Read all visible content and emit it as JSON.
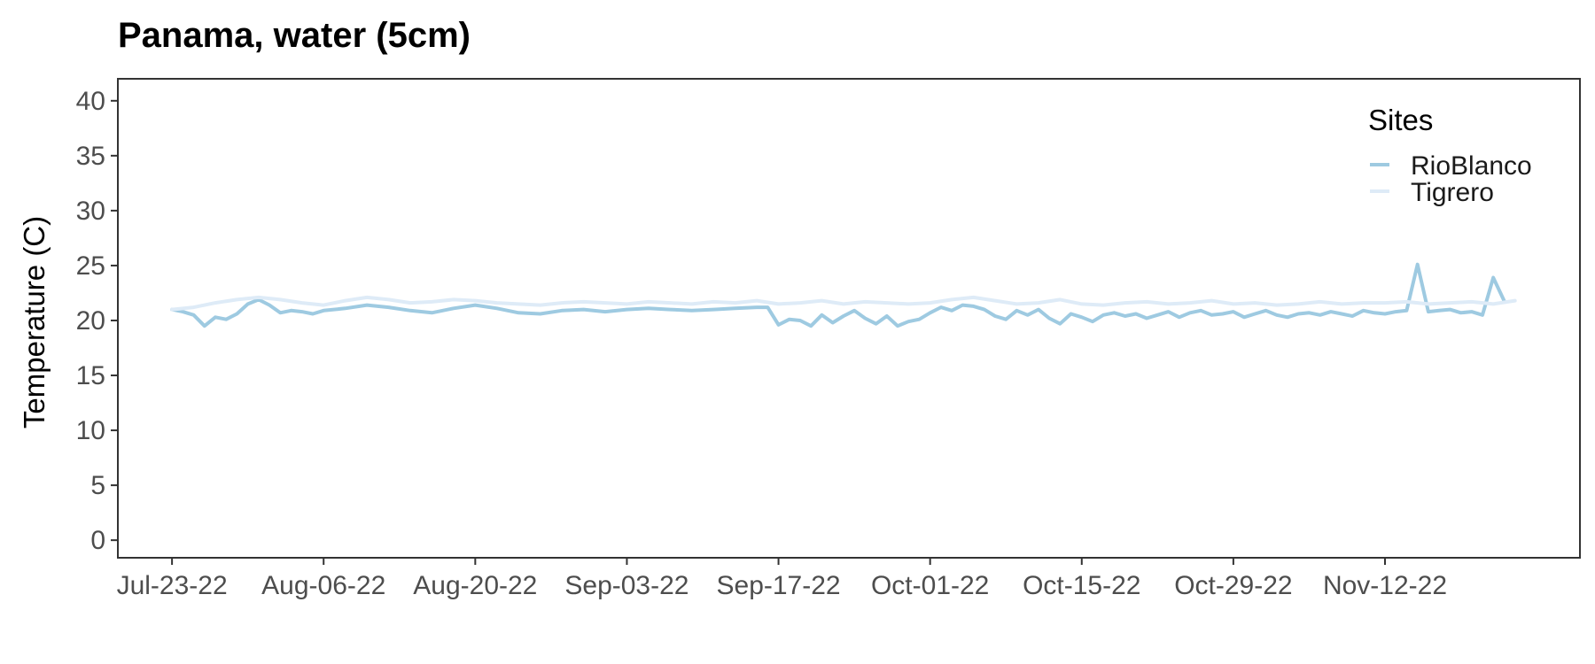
{
  "chart_data": {
    "type": "line",
    "title": "Panama, water (5cm)",
    "xlabel": "",
    "ylabel": "Temperature (C)",
    "ylim": [
      -1.6,
      42
    ],
    "y_ticks": [
      0,
      5,
      10,
      15,
      20,
      25,
      30,
      35,
      40
    ],
    "x_axis": {
      "type": "date",
      "min": "2022-07-18",
      "max": "2022-11-30",
      "tick_dates": [
        "2022-07-23",
        "2022-08-06",
        "2022-08-20",
        "2022-09-03",
        "2022-09-17",
        "2022-10-01",
        "2022-10-15",
        "2022-10-29",
        "2022-11-12"
      ],
      "tick_labels": [
        "Jul-23-22",
        "Aug-06-22",
        "Aug-20-22",
        "Sep-03-22",
        "Sep-17-22",
        "Oct-01-22",
        "Oct-15-22",
        "Oct-29-22",
        "Nov-12-22"
      ]
    },
    "grid": false,
    "legend": {
      "title": "Sites",
      "position": "top-right",
      "entries": [
        {
          "name": "RioBlanco",
          "color": "#9ecae1"
        },
        {
          "name": "Tigrero",
          "color": "#deebf7"
        }
      ]
    },
    "series": [
      {
        "name": "RioBlanco",
        "color": "#9ecae1",
        "x": [
          "2022-07-23",
          "2022-07-24",
          "2022-07-25",
          "2022-07-26",
          "2022-07-27",
          "2022-07-28",
          "2022-07-29",
          "2022-07-30",
          "2022-07-31",
          "2022-08-01",
          "2022-08-02",
          "2022-08-03",
          "2022-08-04",
          "2022-08-05",
          "2022-08-06",
          "2022-08-08",
          "2022-08-10",
          "2022-08-12",
          "2022-08-14",
          "2022-08-16",
          "2022-08-18",
          "2022-08-20",
          "2022-08-22",
          "2022-08-24",
          "2022-08-26",
          "2022-08-28",
          "2022-08-30",
          "2022-09-01",
          "2022-09-03",
          "2022-09-05",
          "2022-09-07",
          "2022-09-09",
          "2022-09-11",
          "2022-09-13",
          "2022-09-15",
          "2022-09-16",
          "2022-09-17",
          "2022-09-18",
          "2022-09-19",
          "2022-09-20",
          "2022-09-21",
          "2022-09-22",
          "2022-09-23",
          "2022-09-24",
          "2022-09-25",
          "2022-09-26",
          "2022-09-27",
          "2022-09-28",
          "2022-09-29",
          "2022-09-30",
          "2022-10-01",
          "2022-10-02",
          "2022-10-03",
          "2022-10-04",
          "2022-10-05",
          "2022-10-06",
          "2022-10-07",
          "2022-10-08",
          "2022-10-09",
          "2022-10-10",
          "2022-10-11",
          "2022-10-12",
          "2022-10-13",
          "2022-10-14",
          "2022-10-15",
          "2022-10-16",
          "2022-10-17",
          "2022-10-18",
          "2022-10-19",
          "2022-10-20",
          "2022-10-21",
          "2022-10-22",
          "2022-10-23",
          "2022-10-24",
          "2022-10-25",
          "2022-10-26",
          "2022-10-27",
          "2022-10-28",
          "2022-10-29",
          "2022-10-30",
          "2022-10-31",
          "2022-11-01",
          "2022-11-02",
          "2022-11-03",
          "2022-11-04",
          "2022-11-05",
          "2022-11-06",
          "2022-11-07",
          "2022-11-08",
          "2022-11-09",
          "2022-11-10",
          "2022-11-11",
          "2022-11-12",
          "2022-11-13",
          "2022-11-14",
          "2022-11-15",
          "2022-11-16",
          "2022-11-17",
          "2022-11-18",
          "2022-11-19",
          "2022-11-20",
          "2022-11-21",
          "2022-11-22",
          "2022-11-23"
        ],
        "y": [
          21.0,
          20.8,
          20.5,
          19.5,
          20.3,
          20.1,
          20.6,
          21.5,
          21.9,
          21.4,
          20.7,
          20.9,
          20.8,
          20.6,
          20.9,
          21.1,
          21.4,
          21.2,
          20.9,
          20.7,
          21.1,
          21.4,
          21.1,
          20.7,
          20.6,
          20.9,
          21.0,
          20.8,
          21.0,
          21.1,
          21.0,
          20.9,
          21.0,
          21.1,
          21.2,
          21.2,
          19.6,
          20.1,
          20.0,
          19.5,
          20.5,
          19.8,
          20.4,
          20.9,
          20.2,
          19.7,
          20.4,
          19.5,
          19.9,
          20.1,
          20.7,
          21.2,
          20.9,
          21.4,
          21.3,
          21.0,
          20.4,
          20.1,
          20.9,
          20.5,
          21.0,
          20.2,
          19.7,
          20.6,
          20.3,
          19.9,
          20.5,
          20.7,
          20.4,
          20.6,
          20.2,
          20.5,
          20.8,
          20.3,
          20.7,
          20.9,
          20.5,
          20.6,
          20.8,
          20.3,
          20.6,
          20.9,
          20.5,
          20.3,
          20.6,
          20.7,
          20.5,
          20.8,
          20.6,
          20.4,
          20.9,
          20.7,
          20.6,
          20.8,
          20.9,
          25.1,
          20.8,
          20.9,
          21.0,
          20.7,
          20.8,
          20.5,
          23.9,
          21.8
        ]
      },
      {
        "name": "Tigrero",
        "color": "#deebf7",
        "x": [
          "2022-07-23",
          "2022-07-25",
          "2022-07-27",
          "2022-07-29",
          "2022-07-31",
          "2022-08-02",
          "2022-08-04",
          "2022-08-06",
          "2022-08-08",
          "2022-08-10",
          "2022-08-12",
          "2022-08-14",
          "2022-08-16",
          "2022-08-18",
          "2022-08-20",
          "2022-08-22",
          "2022-08-24",
          "2022-08-26",
          "2022-08-28",
          "2022-08-30",
          "2022-09-01",
          "2022-09-03",
          "2022-09-05",
          "2022-09-07",
          "2022-09-09",
          "2022-09-11",
          "2022-09-13",
          "2022-09-15",
          "2022-09-17",
          "2022-09-19",
          "2022-09-21",
          "2022-09-23",
          "2022-09-25",
          "2022-09-27",
          "2022-09-29",
          "2022-10-01",
          "2022-10-03",
          "2022-10-05",
          "2022-10-07",
          "2022-10-09",
          "2022-10-11",
          "2022-10-13",
          "2022-10-15",
          "2022-10-17",
          "2022-10-19",
          "2022-10-21",
          "2022-10-23",
          "2022-10-25",
          "2022-10-27",
          "2022-10-29",
          "2022-10-31",
          "2022-11-02",
          "2022-11-04",
          "2022-11-06",
          "2022-11-08",
          "2022-11-10",
          "2022-11-12",
          "2022-11-14",
          "2022-11-16",
          "2022-11-18",
          "2022-11-20",
          "2022-11-22",
          "2022-11-24"
        ],
        "y": [
          21.0,
          21.2,
          21.6,
          21.9,
          22.1,
          21.9,
          21.6,
          21.4,
          21.8,
          22.1,
          21.9,
          21.6,
          21.7,
          21.9,
          21.8,
          21.6,
          21.5,
          21.4,
          21.6,
          21.7,
          21.6,
          21.5,
          21.7,
          21.6,
          21.5,
          21.7,
          21.6,
          21.8,
          21.5,
          21.6,
          21.8,
          21.5,
          21.7,
          21.6,
          21.5,
          21.6,
          21.9,
          22.1,
          21.8,
          21.5,
          21.6,
          21.9,
          21.5,
          21.4,
          21.6,
          21.7,
          21.5,
          21.6,
          21.8,
          21.5,
          21.6,
          21.4,
          21.5,
          21.7,
          21.5,
          21.6,
          21.6,
          21.7,
          21.5,
          21.6,
          21.7,
          21.5,
          21.8
        ]
      }
    ]
  }
}
